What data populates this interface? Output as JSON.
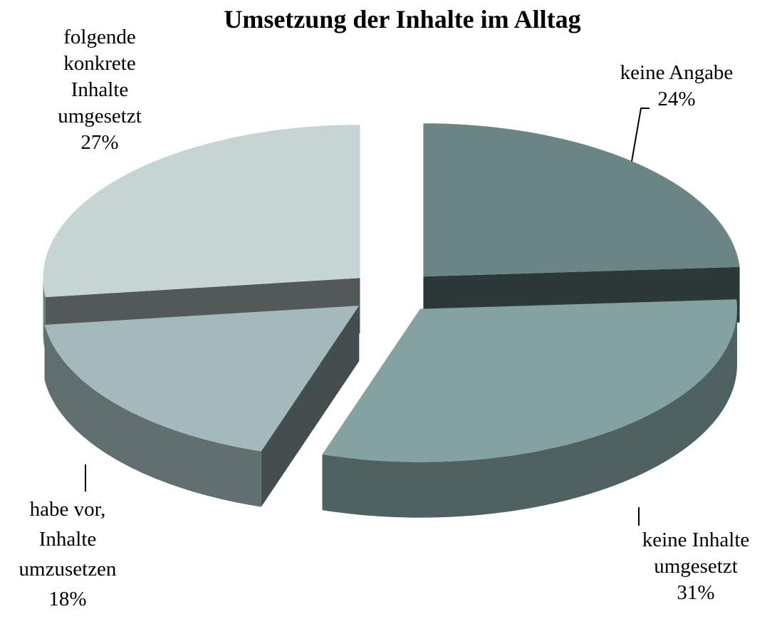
{
  "chart_data": {
    "type": "pie",
    "title": "Umsetzung der Inhalte im Alltag",
    "categories": [
      "keine Angabe",
      "keine Inhalte umgesetzt",
      "habe vor, Inhalte umzusetzen",
      "folgende konkrete Inhalte umgesetzt"
    ],
    "values": [
      24,
      31,
      18,
      27
    ],
    "value_labels": [
      "24%",
      "31%",
      "18%",
      "27%"
    ],
    "colors": [
      "#6b8585",
      "#84a2a2",
      "#a3b9bb",
      "#c6d4d4"
    ],
    "three_d": true,
    "exploded": true
  }
}
